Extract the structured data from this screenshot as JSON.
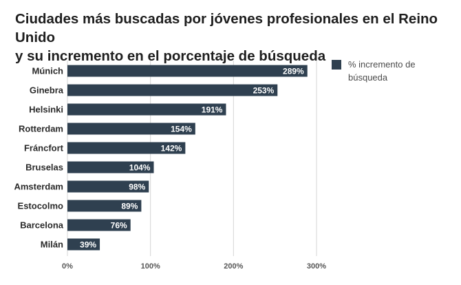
{
  "title_line1": "Ciudades más buscadas por jóvenes profesionales en el Reino Unido",
  "title_line2": "y su incremento en el porcentaje de búsqueda",
  "colors": {
    "bar": "#2f4050",
    "grid": "#d4d4d4",
    "label": "#2a2a2a",
    "bar_text": "#ffffff"
  },
  "chart_data": {
    "type": "bar",
    "orientation": "horizontal",
    "title": "Ciudades más buscadas por jóvenes profesionales en el Reino Unido y su incremento en el porcentaje de búsqueda",
    "categories": [
      "Múnich",
      "Ginebra",
      "Helsinki",
      "Rotterdam",
      "Fráncfort",
      "Bruselas",
      "Amsterdam",
      "Estocolmo",
      "Barcelona",
      "Milán"
    ],
    "values": [
      289,
      253,
      191,
      154,
      142,
      104,
      98,
      89,
      76,
      39
    ],
    "value_labels": [
      "289%",
      "253%",
      "191%",
      "154%",
      "142%",
      "104%",
      "98%",
      "89%",
      "76%",
      "39%"
    ],
    "series_name": "% incremento de búsqueda",
    "xlim": [
      0,
      300
    ],
    "x_ticks": [
      0,
      100,
      200,
      300
    ],
    "x_tick_labels": [
      "0%",
      "100%",
      "200%",
      "300%"
    ],
    "xlabel": "",
    "ylabel": "",
    "grid": true,
    "legend": "top-right"
  }
}
